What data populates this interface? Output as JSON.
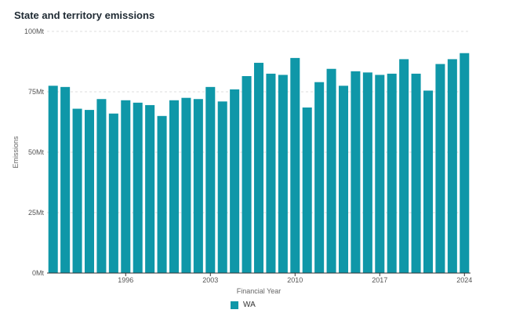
{
  "chart_data": {
    "type": "bar",
    "title": "State and territory emissions",
    "xlabel": "Financial Year",
    "ylabel": "Emissions",
    "ylim": [
      0,
      100
    ],
    "yticks": [
      0,
      25,
      50,
      75,
      100
    ],
    "ytick_labels": [
      "0Mt",
      "25Mt",
      "50Mt",
      "75Mt",
      "100Mt"
    ],
    "y_unit": "Mt",
    "grid": true,
    "legend_position": "bottom",
    "categories": [
      1990,
      1991,
      1992,
      1993,
      1994,
      1995,
      1996,
      1997,
      1998,
      1999,
      2000,
      2001,
      2002,
      2003,
      2004,
      2005,
      2006,
      2007,
      2008,
      2009,
      2010,
      2011,
      2012,
      2013,
      2014,
      2015,
      2016,
      2017,
      2018,
      2019,
      2020,
      2021,
      2022,
      2023,
      2024
    ],
    "xtick_labels": [
      "1996",
      "2003",
      "2010",
      "2017",
      "2024"
    ],
    "series": [
      {
        "name": "WA",
        "color": "#0f97a8",
        "values": [
          77.5,
          77,
          68,
          67.5,
          72,
          66,
          71.5,
          70.5,
          69.5,
          65,
          71.5,
          72.5,
          72,
          77,
          71,
          76,
          81.5,
          87,
          82.5,
          82,
          89,
          68.5,
          79,
          84.5,
          77.5,
          83.5,
          83,
          82,
          82.5,
          88.5,
          82.5,
          75.5,
          86.5,
          88.5,
          91
        ]
      }
    ]
  }
}
